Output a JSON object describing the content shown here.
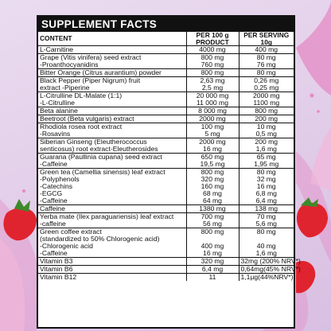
{
  "title": "SUPPLEMENT FACTS",
  "headers": {
    "content": "CONTENT",
    "per100": [
      "PER 100 g",
      "PRODUCT"
    ],
    "serving": [
      "PER SERVING",
      "10g"
    ]
  },
  "rows": [
    {
      "name": [
        "L-Carnitine"
      ],
      "per100": [
        "4000 mg"
      ],
      "serving": [
        "400 mg"
      ]
    },
    {
      "name": [
        "Grape (Vitis vinifera) seed extract",
        "-Proanthocyanidins"
      ],
      "per100": [
        "800 mg",
        "760 mg"
      ],
      "serving": [
        "80 mg",
        "76 mg"
      ]
    },
    {
      "name": [
        "Bitter Orange (Citrus aurantium) powder"
      ],
      "per100": [
        "800 mg"
      ],
      "serving": [
        "80 mg"
      ]
    },
    {
      "name": [
        "Black Pepper (Piper Nigrum) fruit",
        "extract -Piperine"
      ],
      "per100": [
        "2,63 mg",
        "2,5 mg"
      ],
      "serving": [
        "0,26 mg",
        "0,25 mg"
      ]
    },
    {
      "name": [
        "L-Citrulline DL-Malate (1:1)",
        "-L-Citrulline"
      ],
      "per100": [
        "20 000 mg",
        "11 000 mg"
      ],
      "serving": [
        "2000 mg",
        "1100 mg"
      ]
    },
    {
      "name": [
        "Beta alanine"
      ],
      "per100": [
        "8 000 mg"
      ],
      "serving": [
        "800 mg"
      ]
    },
    {
      "name": [
        "Beetroot (Beta vulgaris) extract"
      ],
      "per100": [
        "2000 mg"
      ],
      "serving": [
        "200 mg"
      ]
    },
    {
      "name": [
        "Rhodiola rosea root extract",
        "-Rosavins"
      ],
      "per100": [
        "100 mg",
        "5 mg"
      ],
      "serving": [
        "10 mg",
        "0,5 mg"
      ]
    },
    {
      "name": [
        "Siberian Ginseng (Eleutherococcus",
        "senticosus) root extract-Eleutherosides"
      ],
      "per100": [
        "2000 mg",
        "16 mg"
      ],
      "serving": [
        "200 mg",
        "1,6 mg"
      ]
    },
    {
      "name": [
        "Guarana (Paullinia cupana) seed extract",
        "-Caffeine"
      ],
      "per100": [
        "650 mg",
        "19,5 mg"
      ],
      "serving": [
        "65 mg",
        "1,95 mg"
      ]
    },
    {
      "name": [
        "Green tea (Camellia sinensis) leaf extract",
        "-Polyphenols",
        "-Catechins",
        "-EGCG",
        "-Caffeine"
      ],
      "per100": [
        "800 mg",
        "320 mg",
        "160 mg",
        "68 mg",
        "64 mg"
      ],
      "serving": [
        "80 mg",
        "32 mg",
        "16 mg",
        "6,8 mg",
        "6,4 mg"
      ]
    },
    {
      "name": [
        "Caffeine"
      ],
      "per100": [
        "1380 mg"
      ],
      "serving": [
        "138 mg"
      ]
    },
    {
      "name": [
        "Yerba mate (Ilex paraguariensis) leaf extract",
        "-caffeine"
      ],
      "per100": [
        "700 mg",
        "56 mg"
      ],
      "serving": [
        "70 mg",
        "5,6 mg"
      ]
    },
    {
      "name": [
        "Green coffee extract",
        "(standardized to 50% Chlorogenic acid)",
        "-Chlorogenic acid",
        "-Caffeine"
      ],
      "per100": [
        "800 mg",
        "",
        "400 mg",
        "16 mg"
      ],
      "serving": [
        "80 mg",
        "",
        "40 mg",
        "1,6 mg"
      ]
    },
    {
      "name": [
        "Vitamin B3"
      ],
      "per100": [
        "320 mg"
      ],
      "serving": [
        "32mg (200% NRV*)"
      ]
    },
    {
      "name": [
        "Vitamin B6"
      ],
      "per100": [
        "6,4 mg"
      ],
      "serving": [
        "0,64mg(45% NRV*)"
      ]
    },
    {
      "name": [
        "Vitamin B12"
      ],
      "per100": [
        "11"
      ],
      "serving": [
        "1,1µg(44%NRV*)"
      ]
    }
  ],
  "colors": {
    "background": "#e3cfe9",
    "splash": "#e58ac4",
    "strawberry": "#e0242f",
    "table_border": "#111111",
    "title_bar": "#111111"
  },
  "decorations": [
    "strawberry-icon",
    "pink-splash"
  ]
}
